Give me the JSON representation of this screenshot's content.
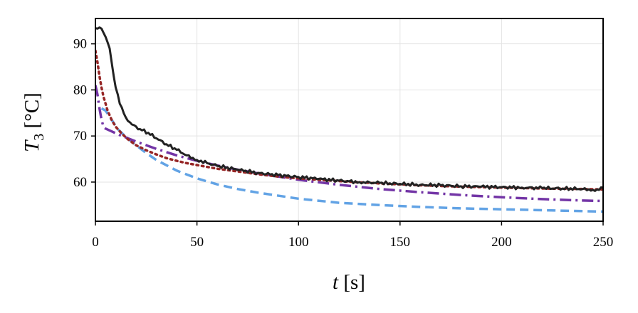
{
  "chart_data": {
    "type": "line",
    "xlabel": {
      "symbol": "t",
      "unit": "[s]"
    },
    "ylabel": {
      "symbol": "T",
      "subscript": "3",
      "unit": "[°C]"
    },
    "xlim": [
      0,
      250
    ],
    "ylim": [
      51.5,
      95.5
    ],
    "x_ticks": [
      0,
      50,
      100,
      150,
      200,
      250
    ],
    "y_ticks": [
      60,
      70,
      80,
      90
    ],
    "grid": true,
    "series": [
      {
        "color": "#222222",
        "style": "solid",
        "noise": 0.25,
        "x": [
          0,
          3,
          5,
          7,
          8,
          9,
          10,
          12,
          15,
          18,
          22,
          26,
          30,
          35,
          40,
          45,
          50,
          60,
          70,
          80,
          90,
          100,
          110,
          120,
          130,
          140,
          150,
          160,
          170,
          180,
          190,
          200,
          210,
          220,
          230,
          240,
          245,
          248,
          250
        ],
        "y": [
          93.4,
          93.3,
          91.5,
          89.0,
          86.0,
          83.0,
          80.5,
          77.0,
          74.0,
          72.5,
          71.5,
          70.7,
          69.5,
          68.2,
          67.0,
          65.8,
          64.8,
          63.5,
          62.7,
          62.0,
          61.5,
          61.1,
          60.7,
          60.3,
          60.0,
          59.8,
          59.6,
          59.4,
          59.3,
          59.1,
          59.0,
          58.9,
          58.8,
          58.7,
          58.6,
          58.5,
          58.3,
          58.3,
          58.8
        ]
      },
      {
        "color": "#962626",
        "style": "dotted",
        "noise": 0,
        "x": [
          0,
          1,
          2,
          3,
          4,
          5,
          6,
          8,
          10,
          13,
          16,
          20,
          25,
          30,
          35,
          40,
          45,
          50,
          60,
          70,
          80,
          90,
          100,
          120,
          140,
          160,
          180,
          200,
          220,
          240,
          250
        ],
        "y": [
          88.5,
          86.0,
          83.0,
          80.5,
          78.5,
          77.0,
          75.5,
          73.5,
          72.0,
          70.5,
          69.3,
          68.0,
          66.9,
          66.0,
          65.2,
          64.6,
          64.1,
          63.7,
          62.9,
          62.3,
          61.7,
          61.2,
          60.8,
          60.2,
          59.7,
          59.3,
          59.0,
          58.8,
          58.6,
          58.5,
          58.4
        ]
      },
      {
        "color": "#7335a6",
        "style": "dashdot",
        "noise": 0,
        "x": [
          0,
          1,
          2,
          3,
          4,
          5,
          8,
          12,
          16,
          20,
          25,
          30,
          40,
          50,
          60,
          70,
          80,
          90,
          100,
          120,
          140,
          160,
          180,
          200,
          220,
          240,
          250
        ],
        "y": [
          81.0,
          79.0,
          76.0,
          73.5,
          72.0,
          71.6,
          71.0,
          70.2,
          69.5,
          68.8,
          68.0,
          67.2,
          65.8,
          64.6,
          63.6,
          62.7,
          61.9,
          61.2,
          60.5,
          59.4,
          58.5,
          57.8,
          57.2,
          56.7,
          56.3,
          56.0,
          55.9
        ]
      },
      {
        "color": "#62a3e5",
        "style": "dashed",
        "noise": 0,
        "x": [
          3,
          5,
          8,
          11,
          15,
          20,
          25,
          30,
          40,
          50,
          60,
          70,
          80,
          100,
          120,
          140,
          160,
          180,
          200,
          220,
          240,
          250
        ],
        "y": [
          76.0,
          75.5,
          73.5,
          71.5,
          69.8,
          68.0,
          66.3,
          64.8,
          62.5,
          60.8,
          59.5,
          58.5,
          57.7,
          56.4,
          55.5,
          55.0,
          54.6,
          54.3,
          54.1,
          53.9,
          53.7,
          53.6
        ]
      }
    ]
  }
}
